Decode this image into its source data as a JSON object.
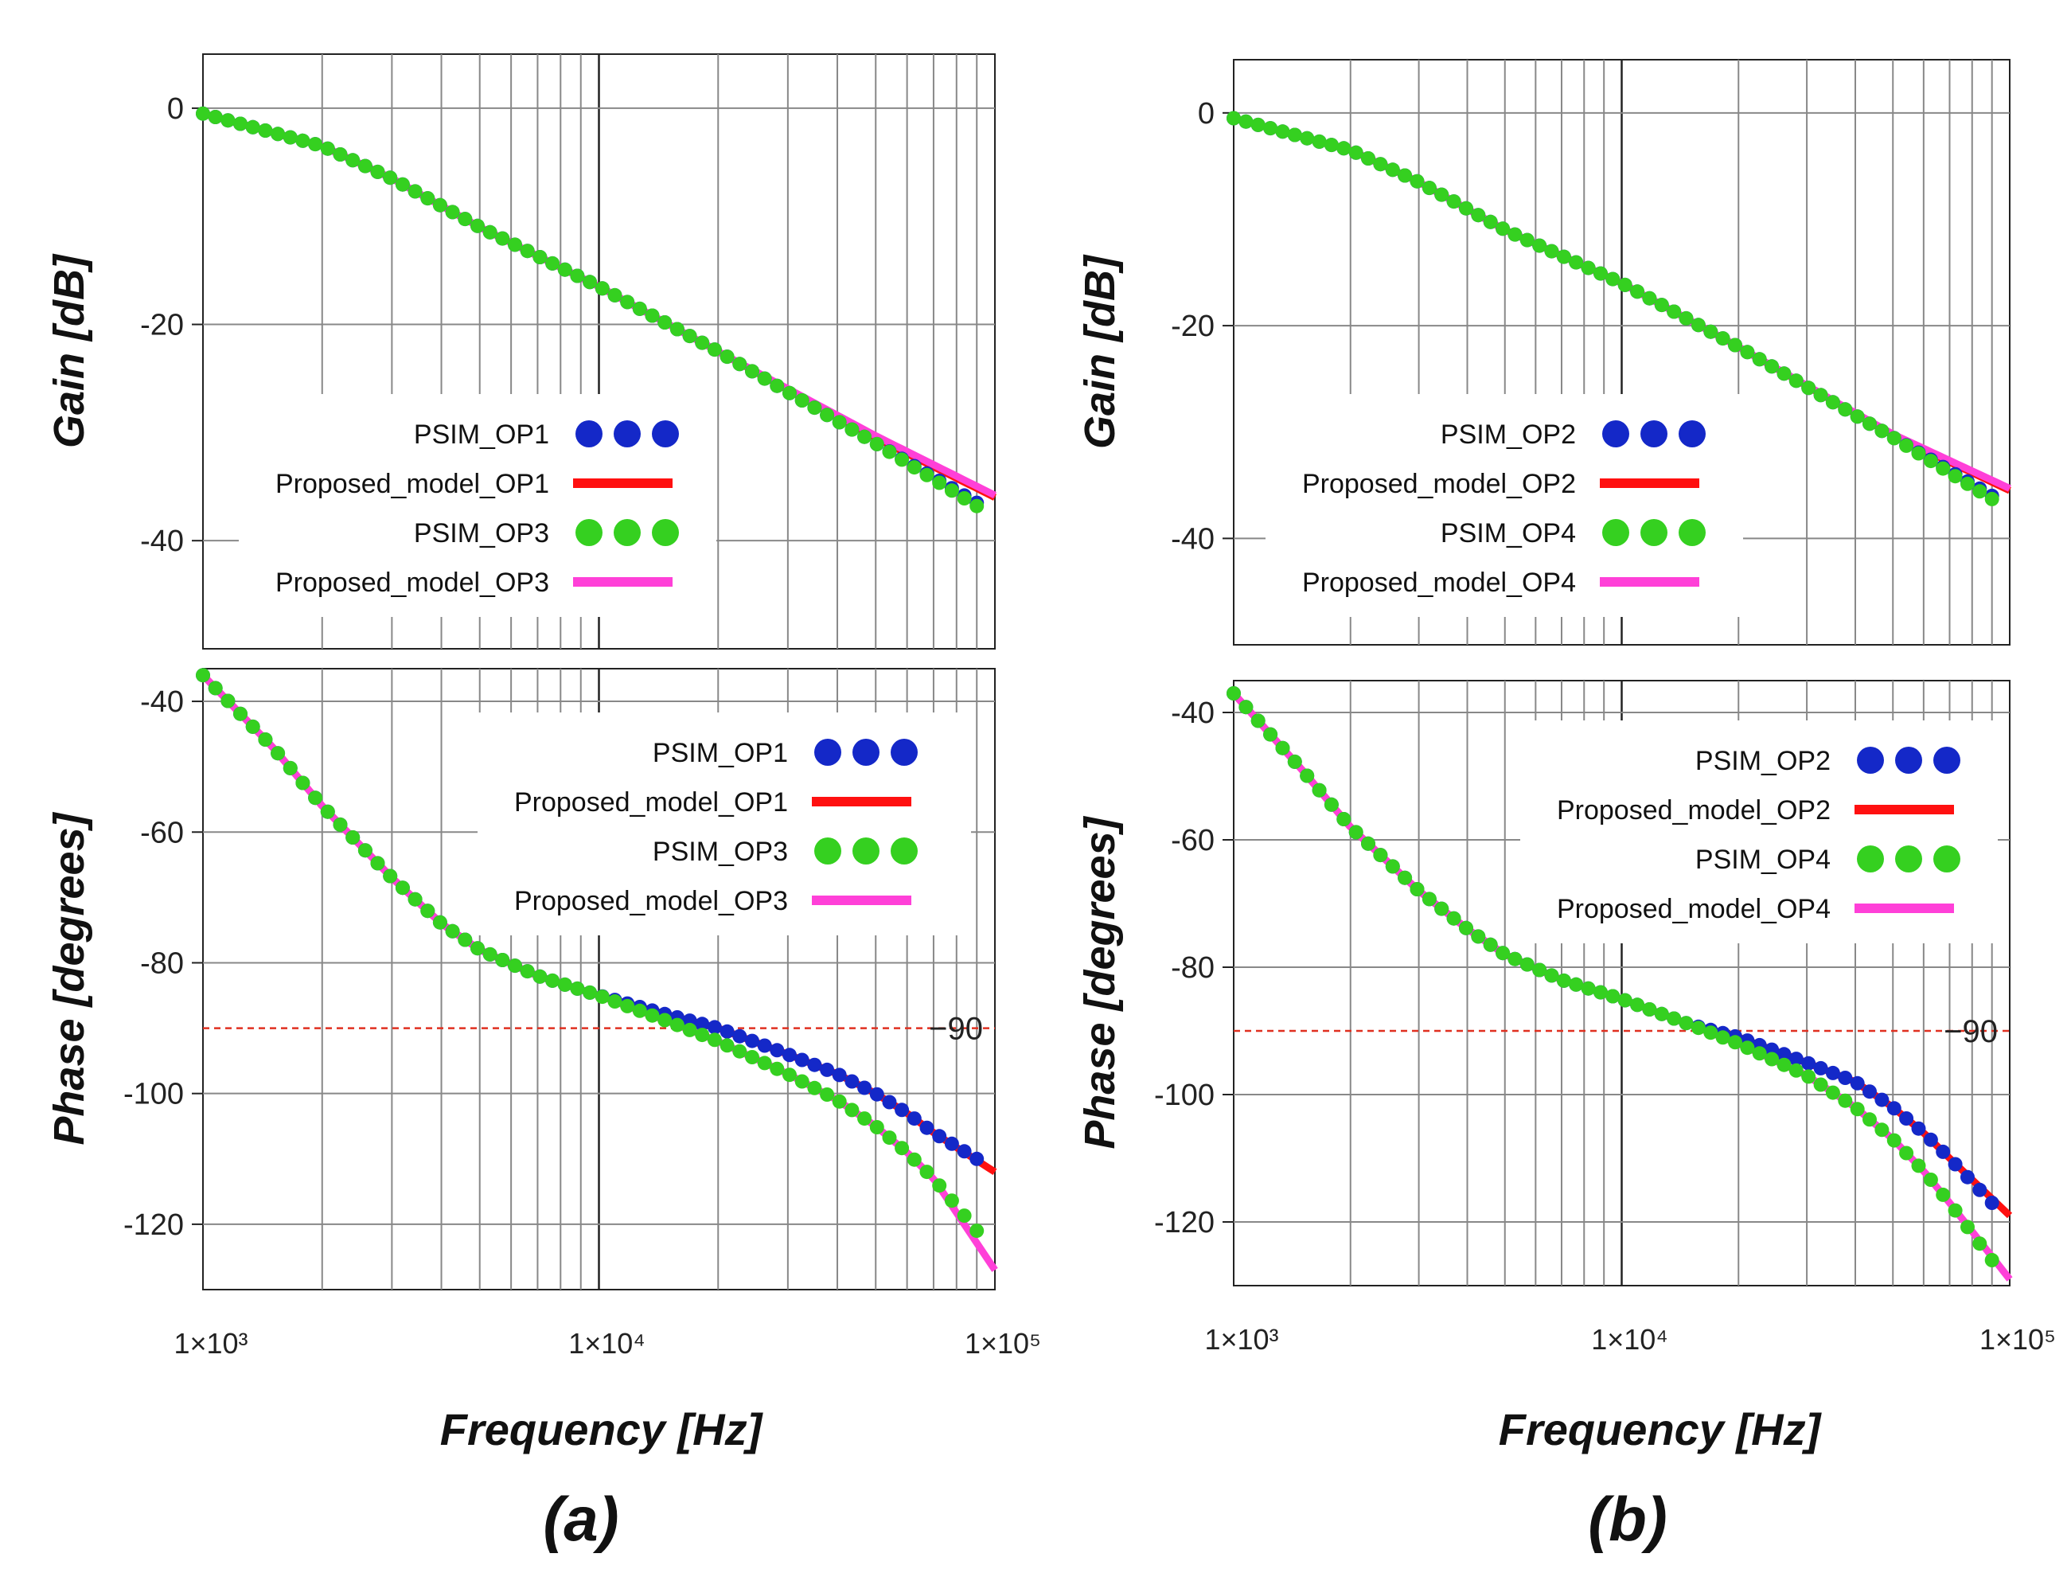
{
  "colors": {
    "psim_op_a": "#1428c8",
    "model_op_a": "#ff1010",
    "psim_op_b": "#35d020",
    "model_op_b": "#ff40d8",
    "reference": "#e03020",
    "grid_major": "#222222",
    "grid_minor": "#888888"
  },
  "panel_labels": [
    "(a)",
    "(b)"
  ],
  "x_axis_label": "Frequency [Hz]",
  "chart_data": [
    {
      "id": "a_gain",
      "type": "line",
      "xscale": "log",
      "xlim": [
        1000,
        100000
      ],
      "ylim": [
        -50,
        5
      ],
      "ylabel": "Gain [dB]",
      "yticks": [
        0,
        -20,
        -40
      ],
      "xtick_labels": [
        "1×10³",
        "1×10⁴",
        "1×10⁵"
      ],
      "legend": [
        "PSIM_OP1",
        "Proposed_model_OP1",
        "PSIM_OP3",
        "Proposed_model_OP3"
      ],
      "series": [
        {
          "name": "PSIM_OP1",
          "style": "dots",
          "color_key": "psim_op_a",
          "x": [
            1000,
            2000,
            3000,
            5000,
            10000,
            20000,
            50000,
            90000
          ],
          "y": [
            -0.5,
            -3.5,
            -6.5,
            -11,
            -16.5,
            -22.5,
            -31,
            -36.5
          ]
        },
        {
          "name": "Proposed_model_OP1",
          "style": "line",
          "color_key": "model_op_a",
          "x": [
            1000,
            2000,
            3000,
            5000,
            10000,
            20000,
            50000,
            100000
          ],
          "y": [
            -0.5,
            -3.5,
            -6.5,
            -11,
            -16.5,
            -22.5,
            -30.5,
            -36
          ]
        },
        {
          "name": "PSIM_OP3",
          "style": "dots",
          "color_key": "psim_op_b",
          "x": [
            1000,
            2000,
            3000,
            5000,
            10000,
            20000,
            50000,
            90000
          ],
          "y": [
            -0.5,
            -3.5,
            -6.5,
            -11,
            -16.5,
            -22.5,
            -31,
            -36.8
          ]
        },
        {
          "name": "Proposed_model_OP3",
          "style": "line",
          "color_key": "model_op_b",
          "x": [
            1000,
            2000,
            3000,
            5000,
            10000,
            20000,
            50000,
            100000
          ],
          "y": [
            -0.5,
            -3.5,
            -6.5,
            -11,
            -16.5,
            -22.5,
            -30.3,
            -35.8
          ]
        }
      ]
    },
    {
      "id": "a_phase",
      "type": "line",
      "xscale": "log",
      "xlim": [
        1000,
        100000
      ],
      "ylim": [
        -130,
        -35
      ],
      "ylabel": "Phase [degrees]",
      "yticks": [
        -40,
        -60,
        -80,
        -100,
        -120
      ],
      "xtick_labels": [
        "1×10³",
        "1×10⁴",
        "1×10⁵"
      ],
      "reference_line": {
        "y": -90,
        "label": "−90"
      },
      "legend": [
        "PSIM_OP1",
        "Proposed_model_OP1",
        "PSIM_OP3",
        "Proposed_model_OP3"
      ],
      "series": [
        {
          "name": "PSIM_OP1",
          "style": "dots",
          "color_key": "psim_op_a",
          "x": [
            1000,
            1500,
            2000,
            3000,
            4000,
            5000,
            7000,
            10000,
            15000,
            20000,
            30000,
            40000,
            50000,
            60000,
            70000,
            90000
          ],
          "y": [
            -36,
            -47,
            -56,
            -67,
            -74,
            -78,
            -82,
            -85,
            -88,
            -90,
            -94,
            -97,
            -100,
            -103,
            -106,
            -110
          ]
        },
        {
          "name": "Proposed_model_OP1",
          "style": "line",
          "color_key": "model_op_a",
          "x": [
            1000,
            1500,
            2000,
            3000,
            4000,
            5000,
            7000,
            10000,
            15000,
            20000,
            30000,
            40000,
            50000,
            60000,
            70000,
            100000
          ],
          "y": [
            -36,
            -47,
            -56,
            -67,
            -74,
            -78,
            -82,
            -85,
            -88,
            -90,
            -94,
            -97,
            -100,
            -103,
            -106,
            -112
          ]
        },
        {
          "name": "PSIM_OP3",
          "style": "dots",
          "color_key": "psim_op_b",
          "x": [
            1000,
            1500,
            2000,
            3000,
            4000,
            5000,
            7000,
            10000,
            15000,
            20000,
            30000,
            40000,
            50000,
            60000,
            70000,
            90000
          ],
          "y": [
            -36,
            -47,
            -56,
            -67,
            -74,
            -78,
            -82,
            -85,
            -89,
            -92,
            -97,
            -101,
            -105,
            -109,
            -113,
            -121
          ]
        },
        {
          "name": "Proposed_model_OP3",
          "style": "line",
          "color_key": "model_op_b",
          "x": [
            1000,
            1500,
            2000,
            3000,
            4000,
            5000,
            7000,
            10000,
            15000,
            20000,
            30000,
            40000,
            50000,
            60000,
            70000,
            100000
          ],
          "y": [
            -36,
            -47,
            -56,
            -67,
            -74,
            -78,
            -82,
            -85,
            -89,
            -92,
            -97,
            -101,
            -105,
            -109,
            -113,
            -127
          ]
        }
      ]
    },
    {
      "id": "b_gain",
      "type": "line",
      "xscale": "log",
      "xlim": [
        1000,
        100000
      ],
      "ylim": [
        -50,
        5
      ],
      "ylabel": "Gain [dB]",
      "yticks": [
        0,
        -20,
        -40
      ],
      "xtick_labels": [
        "1×10³",
        "1×10⁴",
        "1×10⁵"
      ],
      "legend": [
        "PSIM_OP2",
        "Proposed_model_OP2",
        "PSIM_OP4",
        "Proposed_model_OP4"
      ],
      "series": [
        {
          "name": "PSIM_OP2",
          "style": "dots",
          "color_key": "psim_op_a",
          "x": [
            1000,
            2000,
            3000,
            5000,
            10000,
            20000,
            50000,
            90000
          ],
          "y": [
            -0.5,
            -3.5,
            -6.5,
            -11,
            -16,
            -22,
            -30.5,
            -36
          ]
        },
        {
          "name": "Proposed_model_OP2",
          "style": "line",
          "color_key": "model_op_a",
          "x": [
            1000,
            2000,
            3000,
            5000,
            10000,
            20000,
            50000,
            100000
          ],
          "y": [
            -0.5,
            -3.5,
            -6.5,
            -11,
            -16,
            -22,
            -30.3,
            -35.5
          ]
        },
        {
          "name": "PSIM_OP4",
          "style": "dots",
          "color_key": "psim_op_b",
          "x": [
            1000,
            2000,
            3000,
            5000,
            10000,
            20000,
            50000,
            90000
          ],
          "y": [
            -0.5,
            -3.5,
            -6.5,
            -11,
            -16,
            -22,
            -30.5,
            -36.3
          ]
        },
        {
          "name": "Proposed_model_OP4",
          "style": "line",
          "color_key": "model_op_b",
          "x": [
            1000,
            2000,
            3000,
            5000,
            10000,
            20000,
            50000,
            100000
          ],
          "y": [
            -0.5,
            -3.5,
            -6.5,
            -11,
            -16,
            -22,
            -30.2,
            -35.3
          ]
        }
      ]
    },
    {
      "id": "b_phase",
      "type": "line",
      "xscale": "log",
      "xlim": [
        1000,
        100000
      ],
      "ylim": [
        -130,
        -35
      ],
      "ylabel": "Phase [degrees]",
      "yticks": [
        -40,
        -60,
        -80,
        -100,
        -120
      ],
      "xtick_labels": [
        "1×10³",
        "1×10⁴",
        "1×10⁵"
      ],
      "reference_line": {
        "y": -90,
        "label": "−90"
      },
      "legend": [
        "PSIM_OP2",
        "Proposed_model_OP2",
        "PSIM_OP4",
        "Proposed_model_OP4"
      ],
      "series": [
        {
          "name": "PSIM_OP2",
          "style": "dots",
          "color_key": "psim_op_a",
          "x": [
            1000,
            1500,
            2000,
            3000,
            4000,
            5000,
            7000,
            10000,
            15000,
            20000,
            30000,
            40000,
            50000,
            60000,
            70000,
            90000
          ],
          "y": [
            -37,
            -49,
            -58,
            -68,
            -74,
            -78,
            -82,
            -85,
            -89,
            -91,
            -95,
            -98,
            -102,
            -106,
            -110,
            -117
          ]
        },
        {
          "name": "Proposed_model_OP2",
          "style": "line",
          "color_key": "model_op_a",
          "x": [
            1000,
            1500,
            2000,
            3000,
            4000,
            5000,
            7000,
            10000,
            15000,
            20000,
            30000,
            40000,
            50000,
            60000,
            70000,
            100000
          ],
          "y": [
            -37,
            -49,
            -58,
            -68,
            -74,
            -78,
            -82,
            -85,
            -89,
            -91,
            -95,
            -98,
            -102,
            -106,
            -110,
            -119
          ]
        },
        {
          "name": "PSIM_OP4",
          "style": "dots",
          "color_key": "psim_op_b",
          "x": [
            1000,
            1500,
            2000,
            3000,
            4000,
            5000,
            7000,
            10000,
            15000,
            20000,
            30000,
            40000,
            50000,
            60000,
            70000,
            90000
          ],
          "y": [
            -37,
            -49,
            -58,
            -68,
            -74,
            -78,
            -82,
            -85,
            -89,
            -92,
            -97,
            -102,
            -107,
            -112,
            -117,
            -126
          ]
        },
        {
          "name": "Proposed_model_OP4",
          "style": "line",
          "color_key": "model_op_b",
          "x": [
            1000,
            1500,
            2000,
            3000,
            4000,
            5000,
            7000,
            10000,
            15000,
            20000,
            30000,
            40000,
            50000,
            60000,
            70000,
            100000
          ],
          "y": [
            -37,
            -49,
            -58,
            -68,
            -74,
            -78,
            -82,
            -85,
            -89,
            -92,
            -97,
            -102,
            -107,
            -112,
            -117,
            -129
          ]
        }
      ]
    }
  ]
}
